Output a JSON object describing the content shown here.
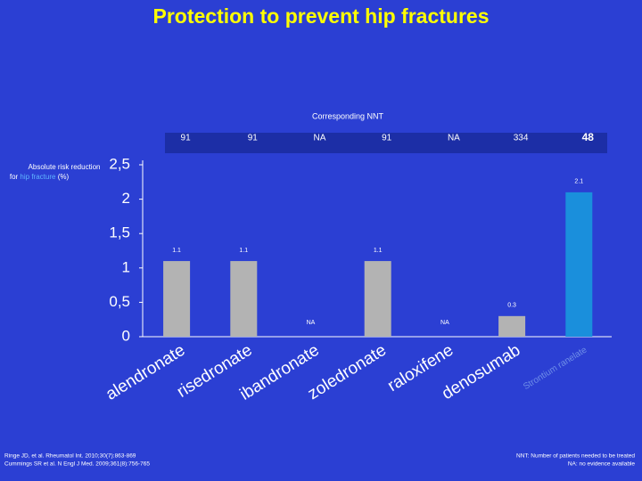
{
  "title": "Protection to prevent hip fractures",
  "nnt": {
    "heading": "Corresponding NNT",
    "values": [
      "91",
      "91",
      "NA",
      "91",
      "NA",
      "334",
      "48"
    ]
  },
  "chart_data": {
    "type": "bar",
    "y_label": [
      "Absolute risk reduction",
      "for",
      "hip fracture",
      "(%)"
    ],
    "categories": [
      "alendronate",
      "risedronate",
      "ibandronate",
      "zoledronate",
      "raloxifene",
      "denosumab",
      "Strontium ranelate"
    ],
    "values": [
      1.1,
      1.1,
      null,
      1.1,
      null,
      0.3,
      2.1
    ],
    "value_labels": [
      "1.1",
      "1.1",
      "NA",
      "1.1",
      "NA",
      "0.3",
      "2.1"
    ],
    "colors": [
      "#b3b3b3",
      "#b3b3b3",
      "#b3b3b3",
      "#b3b3b3",
      "#b3b3b3",
      "#b3b3b3",
      "#1a8fdc"
    ],
    "ylim": [
      0,
      2.5
    ],
    "yticks": [
      0,
      {
        "value": 0.5,
        "label": "0,5"
      },
      1,
      {
        "value": 1.5,
        "label": "1,5"
      },
      2,
      {
        "value": 2.5,
        "label": "2,5"
      }
    ],
    "grid": false
  },
  "footnotes": {
    "left": [
      "Ringe JD, et al. Rheumatol Int. 2010;30(7):863-869",
      "Cummings SR et al. N Engl J Med. 2009;361(8):756-765"
    ],
    "right": [
      "NNT: Number of patients needed to be treated",
      "NA: no evidence available"
    ]
  }
}
